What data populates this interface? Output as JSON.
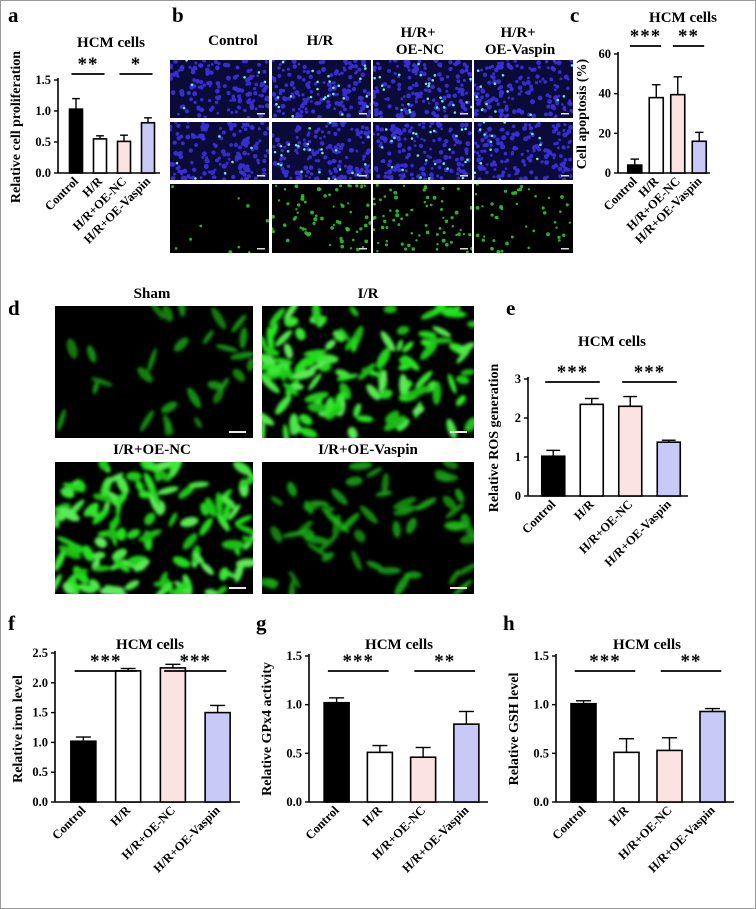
{
  "colors": {
    "control": "#000000",
    "hr": "#ffffff",
    "oenc": "#fbe3e1",
    "vaspin": "#c9c9f7",
    "blue_nuclei": "#3a2fd6",
    "green": "#2ec42a"
  },
  "panels": {
    "a": {
      "letter": "a"
    },
    "b": {
      "letter": "b",
      "columns": [
        "Control",
        "H/R",
        "H/R+\nOE-NC",
        "H/R+\nOE-Vaspin"
      ]
    },
    "c": {
      "letter": "c"
    },
    "d": {
      "letter": "d",
      "labels": [
        "Sham",
        "I/R",
        "I/R+OE-NC",
        "I/R+OE-Vaspin"
      ]
    },
    "e": {
      "letter": "e"
    },
    "f": {
      "letter": "f"
    },
    "g": {
      "letter": "g"
    },
    "h": {
      "letter": "h"
    }
  },
  "chart_data": [
    {
      "id": "a",
      "type": "bar",
      "title": "HCM cells",
      "ylabel": "Relative cell proliferation",
      "categories": [
        "Control",
        "H/R",
        "H/R+OE-NC",
        "H/R+OE-Vaspin"
      ],
      "values": [
        1.03,
        0.55,
        0.51,
        0.81
      ],
      "errors": [
        0.17,
        0.05,
        0.1,
        0.08
      ],
      "ylim": [
        0,
        1.5
      ],
      "yticks": [
        "0.0",
        "0.5",
        "1.0",
        "1.5"
      ],
      "significance": [
        {
          "from": 0,
          "to": 1,
          "label": "**"
        },
        {
          "from": 2,
          "to": 3,
          "label": "*"
        }
      ]
    },
    {
      "id": "c",
      "type": "bar",
      "title": "HCM cells",
      "ylabel": "Cell apoptosis (%)",
      "categories": [
        "Control",
        "H/R",
        "H/R+OE-NC",
        "H/R+OE-Vaspin"
      ],
      "values": [
        4,
        38,
        39.5,
        16
      ],
      "errors": [
        3,
        6.5,
        9,
        4.5
      ],
      "ylim": [
        0,
        60
      ],
      "yticks": [
        "0",
        "20",
        "40",
        "60"
      ],
      "significance": [
        {
          "from": 0,
          "to": 1,
          "label": "***"
        },
        {
          "from": 2,
          "to": 3,
          "label": "**"
        }
      ]
    },
    {
      "id": "e",
      "type": "bar",
      "title": "HCM cells",
      "ylabel": "Relative ROS generation",
      "categories": [
        "Control",
        "H/R",
        "H/R+OE-NC",
        "H/R+OE-Vaspin"
      ],
      "values": [
        1.02,
        2.35,
        2.3,
        1.38
      ],
      "errors": [
        0.15,
        0.15,
        0.25,
        0.05
      ],
      "ylim": [
        0,
        3
      ],
      "yticks": [
        "0",
        "1",
        "2",
        "3"
      ],
      "significance": [
        {
          "from": 0,
          "to": 1,
          "label": "***"
        },
        {
          "from": 2,
          "to": 3,
          "label": "***"
        }
      ]
    },
    {
      "id": "f",
      "type": "bar",
      "title": "HCM cells",
      "ylabel": "Relative iron level",
      "categories": [
        "Control",
        "H/R",
        "H/R+OE-NC",
        "H/R+OE-Vaspin"
      ],
      "values": [
        1.02,
        2.2,
        2.25,
        1.5
      ],
      "errors": [
        0.07,
        0.04,
        0.06,
        0.12
      ],
      "ylim": [
        0,
        2.5
      ],
      "yticks": [
        "0.0",
        "0.5",
        "1.0",
        "1.5",
        "2.0",
        "2.5"
      ],
      "significance": [
        {
          "from": 0,
          "to": 1,
          "label": "***"
        },
        {
          "from": 2,
          "to": 3,
          "label": "***"
        }
      ]
    },
    {
      "id": "g",
      "type": "bar",
      "title": "HCM cells",
      "ylabel": "Relative GPx4 activity",
      "categories": [
        "Control",
        "H/R",
        "H/R+OE-NC",
        "H/R+OE-Vaspin"
      ],
      "values": [
        1.02,
        0.51,
        0.46,
        0.8
      ],
      "errors": [
        0.05,
        0.07,
        0.1,
        0.13
      ],
      "ylim": [
        0,
        1.5
      ],
      "yticks": [
        "0.0",
        "0.5",
        "1.0",
        "1.5"
      ],
      "significance": [
        {
          "from": 0,
          "to": 1,
          "label": "***"
        },
        {
          "from": 2,
          "to": 3,
          "label": "**"
        }
      ]
    },
    {
      "id": "h",
      "type": "bar",
      "title": "HCM cells",
      "ylabel": "Relative GSH level",
      "categories": [
        "Control",
        "H/R",
        "H/R+OE-NC",
        "H/R+OE-Vaspin"
      ],
      "values": [
        1.01,
        0.51,
        0.53,
        0.93
      ],
      "errors": [
        0.03,
        0.14,
        0.13,
        0.03
      ],
      "ylim": [
        0,
        1.5
      ],
      "yticks": [
        "0.0",
        "0.5",
        "1.0",
        "1.5"
      ],
      "significance": [
        {
          "from": 0,
          "to": 1,
          "label": "***"
        },
        {
          "from": 2,
          "to": 3,
          "label": "**"
        }
      ]
    }
  ]
}
